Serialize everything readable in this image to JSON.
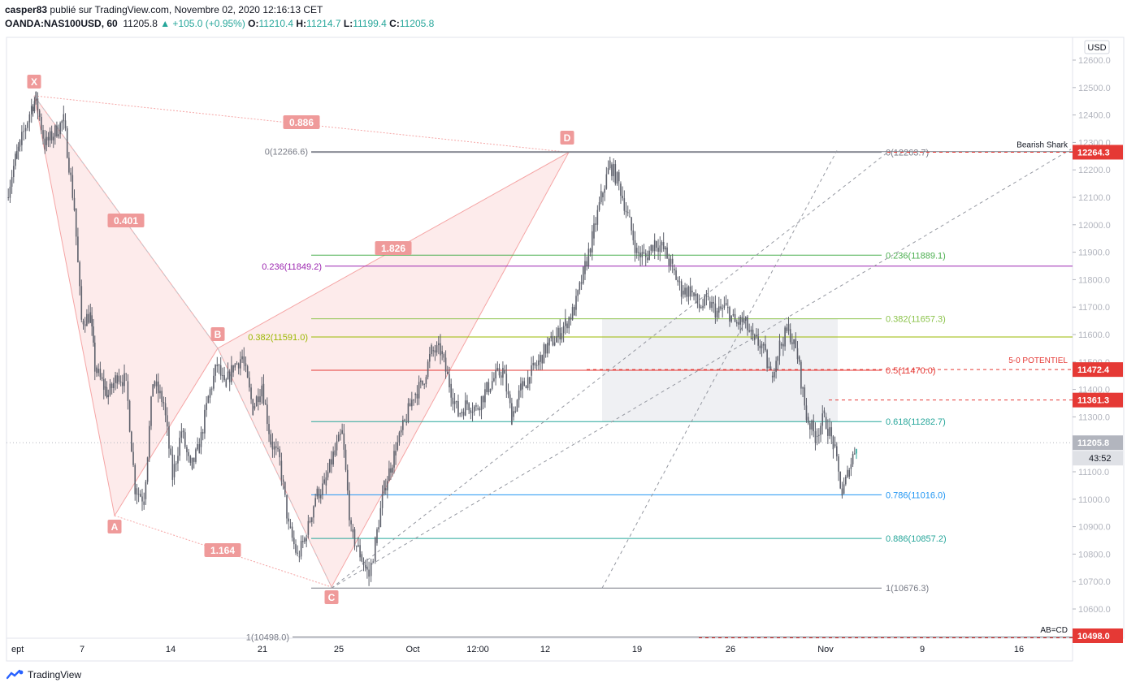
{
  "header": {
    "author": "casper83",
    "published": "publié sur TradingView.com, Novembre 02, 2020 12:16:13 CET",
    "symbol": "OANDA:NAS100USD, 60",
    "last": "11205.8",
    "change": "▲ +105.0 (+0.95%)",
    "o_label": "O:",
    "o": "11210.4",
    "h_label": "H:",
    "h": "11214.7",
    "l_label": "L:",
    "l": "11199.4",
    "c_label": "C:",
    "c": "11205.8"
  },
  "footer": {
    "brand": "TradingView"
  },
  "colors": {
    "up": "#26a69a",
    "down": "#ef5350",
    "candle": "#5d606b",
    "pattern": "#f5a5a5",
    "badge": "#ef9a9a",
    "red_tag": "#e53935",
    "grey_tag": "#b2b5be"
  },
  "chart_data": {
    "type": "candlestick",
    "instrument": "OANDA:NAS100USD",
    "interval": "60",
    "currency": "USD",
    "ylim": [
      10498,
      12680
    ],
    "y_ticks": [
      10600,
      10700,
      10800,
      10900,
      11000,
      11100,
      11200,
      11300,
      11400,
      11500,
      11600,
      11700,
      11800,
      11900,
      12000,
      12100,
      12200,
      12300,
      12400,
      12500,
      12600
    ],
    "y_tick_labels": [
      "10600.0",
      "10700.0",
      "10800.0",
      "10900.0",
      "11000.0",
      "11100.0",
      "11200.0",
      "11300.0",
      "11400.0",
      "11500.0",
      "11600.0",
      "11700.0",
      "11800.0",
      "11900.0",
      "12000.0",
      "12100.0",
      "12200.0",
      "12300.0",
      "12400.0",
      "12500.0",
      "12600.0"
    ],
    "x_tick_labels": [
      "ept",
      "7",
      "14",
      "21",
      "25",
      "Oct",
      "12:00",
      "12",
      "19",
      "26",
      "Nov",
      "9",
      "16"
    ],
    "price_path": [
      [
        0,
        12100
      ],
      [
        1.0,
        12240
      ],
      [
        1.5,
        12290
      ],
      [
        2.8,
        12430
      ],
      [
        3.3,
        12460
      ],
      [
        4.3,
        12290
      ],
      [
        6.4,
        12380
      ],
      [
        7.6,
        12060
      ],
      [
        8.4,
        11650
      ],
      [
        9.4,
        11670
      ],
      [
        9.9,
        11480
      ],
      [
        10.9,
        11410
      ],
      [
        11.4,
        11380
      ],
      [
        12.4,
        11450
      ],
      [
        13.4,
        11430
      ],
      [
        14.4,
        11040
      ],
      [
        15.4,
        11000
      ],
      [
        16.4,
        11430
      ],
      [
        17.6,
        11350
      ],
      [
        18.6,
        11080
      ],
      [
        19.6,
        11250
      ],
      [
        20.6,
        11110
      ],
      [
        21.6,
        11190
      ],
      [
        22.6,
        11370
      ],
      [
        23.6,
        11490
      ],
      [
        24.4,
        11410
      ],
      [
        25.4,
        11480
      ],
      [
        26.4,
        11520
      ],
      [
        27.6,
        11330
      ],
      [
        28.6,
        11420
      ],
      [
        29.6,
        11210
      ],
      [
        30.6,
        11140
      ],
      [
        31.6,
        10900
      ],
      [
        32.6,
        10790
      ],
      [
        33.6,
        10870
      ],
      [
        34.6,
        11010
      ],
      [
        35.6,
        11050
      ],
      [
        36.6,
        11160
      ],
      [
        37.6,
        11240
      ],
      [
        38.6,
        10880
      ],
      [
        39.6,
        10800
      ],
      [
        40.6,
        10720
      ],
      [
        41.3,
        10840
      ],
      [
        42.3,
        11040
      ],
      [
        43.6,
        11180
      ],
      [
        44.6,
        11280
      ],
      [
        45.6,
        11380
      ],
      [
        46.6,
        11420
      ],
      [
        47.6,
        11540
      ],
      [
        48.6,
        11540
      ],
      [
        49.6,
        11420
      ],
      [
        50.6,
        11310
      ],
      [
        51.6,
        11350
      ],
      [
        52.6,
        11330
      ],
      [
        53.6,
        11390
      ],
      [
        54.6,
        11440
      ],
      [
        55.6,
        11470
      ],
      [
        56.6,
        11300
      ],
      [
        57.6,
        11400
      ],
      [
        58.6,
        11450
      ],
      [
        59.6,
        11500
      ],
      [
        60.6,
        11560
      ],
      [
        61.6,
        11590
      ],
      [
        62.6,
        11640
      ],
      [
        63.6,
        11690
      ],
      [
        64.6,
        11820
      ],
      [
        65.6,
        11950
      ],
      [
        66.6,
        12100
      ],
      [
        67.6,
        12220
      ],
      [
        68.6,
        12150
      ],
      [
        69.6,
        12030
      ],
      [
        70.6,
        11900
      ],
      [
        71.6,
        11880
      ],
      [
        72.6,
        11940
      ],
      [
        73.6,
        11910
      ],
      [
        74.6,
        11840
      ],
      [
        75.6,
        11760
      ],
      [
        76.6,
        11760
      ],
      [
        77.6,
        11700
      ],
      [
        78.6,
        11720
      ],
      [
        79.6,
        11680
      ],
      [
        80.6,
        11700
      ],
      [
        81.6,
        11640
      ],
      [
        82.6,
        11650
      ],
      [
        83.6,
        11580
      ],
      [
        84.6,
        11560
      ],
      [
        85.6,
        11450
      ],
      [
        86.6,
        11560
      ],
      [
        87.6,
        11620
      ],
      [
        88.6,
        11520
      ],
      [
        89.6,
        11300
      ],
      [
        90.6,
        11230
      ],
      [
        91.6,
        11300
      ],
      [
        92.6,
        11200
      ],
      [
        93.6,
        11020
      ],
      [
        94.4,
        11110
      ],
      [
        95.2,
        11205.8
      ]
    ],
    "current_price": 11205.8,
    "countdown": "43:52",
    "xabcd": {
      "name": "Bearish Shark",
      "points": {
        "X": 12470,
        "A": 10940,
        "B": 11550,
        "C": 10680,
        "D": 12264
      }
    },
    "ratio_badges": [
      "0.886",
      "0.401",
      "1.826",
      "1.164"
    ],
    "fib_left": [
      {
        "label": "0(12266.6)",
        "price": 12266.6,
        "color": "#787b86"
      },
      {
        "label": "0.236(11849.2)",
        "price": 11849.2,
        "color": "#9c27b0"
      },
      {
        "label": "0.382(11591.0)",
        "price": 11591.0,
        "color": "#9bb800"
      },
      {
        "label": "1(10498.0)",
        "price": 10498.0,
        "color": "#787b86"
      }
    ],
    "fib_right": [
      {
        "label": "0(12263.7)",
        "price": 12263.7,
        "color": "#787b86"
      },
      {
        "label": "0.236(11889.1)",
        "price": 11889.1,
        "color": "#4caf50"
      },
      {
        "label": "0.382(11657.3)",
        "price": 11657.3,
        "color": "#8bc34a"
      },
      {
        "label": "0.5(11470.0)",
        "price": 11470.0,
        "color": "#e53935"
      },
      {
        "label": "0.618(11282.7)",
        "price": 11282.7,
        "color": "#26a69a"
      },
      {
        "label": "0.786(11016.0)",
        "price": 11016.0,
        "color": "#2196f3"
      },
      {
        "label": "0.886(10857.2)",
        "price": 10857.2,
        "color": "#26a69a"
      },
      {
        "label": "1(10676.3)",
        "price": 10676.3,
        "color": "#787b86"
      }
    ],
    "annotations": {
      "shark": "Bearish Shark",
      "po": "5-0 POTENTIEL",
      "abcd": "AB=CD"
    },
    "price_tags": [
      {
        "label": "12264.3",
        "price": 12264.3,
        "style": "red"
      },
      {
        "label": "11472.4",
        "price": 11472.4,
        "style": "red"
      },
      {
        "label": "11361.3",
        "price": 11361.3,
        "style": "red"
      },
      {
        "label": "11205.8",
        "price": 11205.8,
        "style": "grey"
      },
      {
        "label": "10498.0",
        "price": 10498.0,
        "style": "red"
      }
    ]
  }
}
